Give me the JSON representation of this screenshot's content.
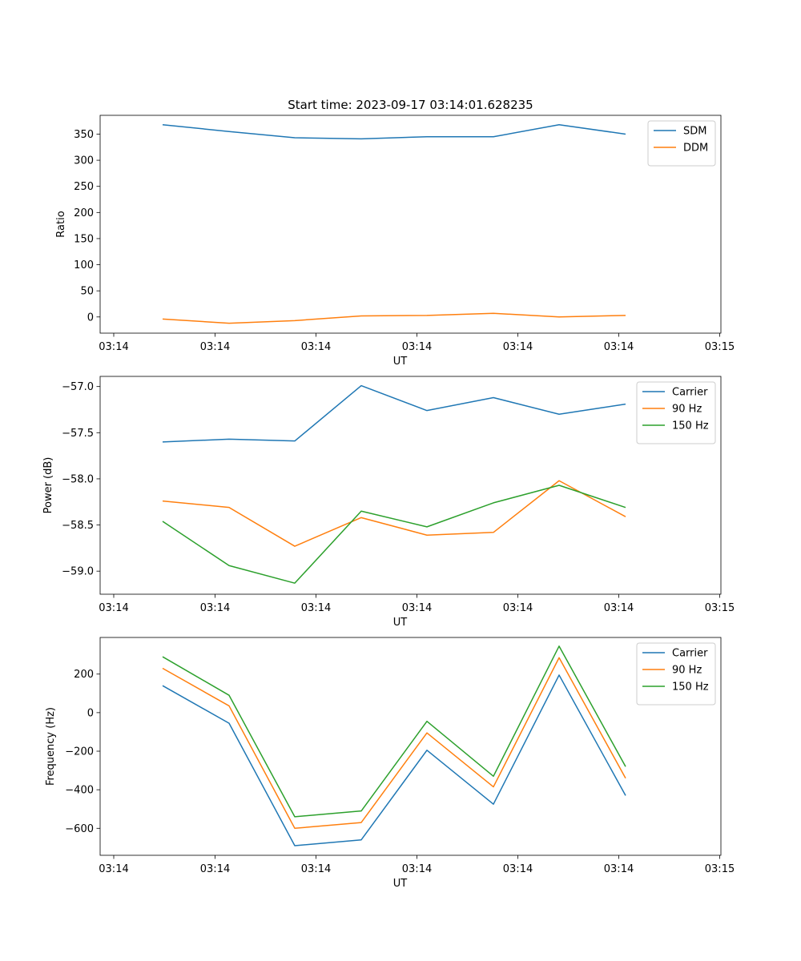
{
  "title": "Start time: 2023-09-17 03:14:01.628235",
  "chart_data": [
    {
      "type": "line",
      "name": "ratio",
      "title": "Start time: 2023-09-17 03:14:01.628235",
      "xlabel": "UT",
      "ylabel": "Ratio",
      "x_tick_labels": [
        "03:14",
        "03:14",
        "03:14",
        "03:14",
        "03:14",
        "03:14",
        "03:15"
      ],
      "y_ticks": [
        0,
        50,
        100,
        150,
        200,
        250,
        300,
        350
      ],
      "y_tick_labels": [
        "0",
        "50",
        "100",
        "150",
        "200",
        "250",
        "300",
        "350"
      ],
      "ylim": [
        -31,
        386
      ],
      "legend": "top-right",
      "series": [
        {
          "name": "SDM",
          "color": "#1f77b4",
          "values": [
            368,
            355,
            343,
            341,
            345,
            345,
            368,
            350
          ]
        },
        {
          "name": "DDM",
          "color": "#ff7f0e",
          "values": [
            -4,
            -12,
            -7,
            2,
            3,
            7,
            0,
            3
          ]
        }
      ]
    },
    {
      "type": "line",
      "name": "power",
      "title": "",
      "xlabel": "UT",
      "ylabel": "Power (dB)",
      "x_tick_labels": [
        "03:14",
        "03:14",
        "03:14",
        "03:14",
        "03:14",
        "03:14",
        "03:15"
      ],
      "y_ticks": [
        -59.0,
        -58.5,
        -58.0,
        -57.5,
        -57.0
      ],
      "y_tick_labels": [
        "−59.0",
        "−58.5",
        "−58.0",
        "−57.5",
        "−57.0"
      ],
      "ylim": [
        -59.25,
        -56.89
      ],
      "legend": "top-right",
      "series": [
        {
          "name": "Carrier",
          "color": "#1f77b4",
          "values": [
            -57.6,
            -57.57,
            -57.59,
            -56.99,
            -57.26,
            -57.12,
            -57.3,
            -57.19
          ]
        },
        {
          "name": "90 Hz",
          "color": "#ff7f0e",
          "values": [
            -58.24,
            -58.31,
            -58.73,
            -58.42,
            -58.61,
            -58.58,
            -58.02,
            -58.41
          ]
        },
        {
          "name": "150 Hz",
          "color": "#2ca02c",
          "values": [
            -58.46,
            -58.94,
            -59.13,
            -58.35,
            -58.52,
            -58.26,
            -58.07,
            -58.31
          ]
        }
      ]
    },
    {
      "type": "line",
      "name": "frequency",
      "title": "",
      "xlabel": "UT",
      "ylabel": "Frequency (Hz)",
      "x_tick_labels": [
        "03:14",
        "03:14",
        "03:14",
        "03:14",
        "03:14",
        "03:14",
        "03:15"
      ],
      "y_ticks": [
        -600,
        -400,
        -200,
        0,
        200
      ],
      "y_tick_labels": [
        "−600",
        "−400",
        "−200",
        "0",
        "200"
      ],
      "ylim": [
        -740,
        390
      ],
      "legend": "top-right",
      "series": [
        {
          "name": "Carrier",
          "color": "#1f77b4",
          "values": [
            140,
            -55,
            -690,
            -660,
            -195,
            -475,
            195,
            -430
          ]
        },
        {
          "name": "90 Hz",
          "color": "#ff7f0e",
          "values": [
            230,
            35,
            -600,
            -570,
            -105,
            -385,
            285,
            -340
          ]
        },
        {
          "name": "150 Hz",
          "color": "#2ca02c",
          "values": [
            290,
            90,
            -540,
            -510,
            -45,
            -330,
            345,
            -280
          ]
        }
      ]
    }
  ]
}
